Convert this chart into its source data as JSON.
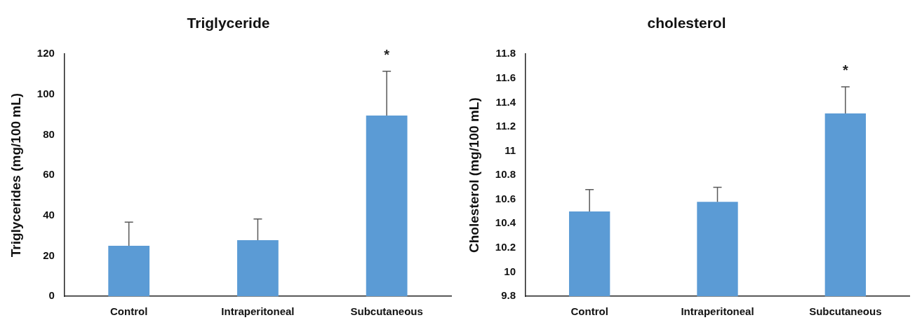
{
  "chart_data": [
    {
      "type": "bar",
      "title": "Triglyceride",
      "ylabel": "Triglycerides (mg/100 mL)",
      "categories": [
        "Control",
        "Intraperitoneal",
        "Subcutaneous"
      ],
      "values": [
        25,
        27.8,
        89.5
      ],
      "errors": [
        [
          25,
          36.7
        ],
        [
          27.8,
          38.3
        ],
        [
          89.5,
          111.5
        ]
      ],
      "color": "#5b9bd5",
      "ylim": [
        0,
        120
      ],
      "yticks": [
        0,
        20,
        40,
        60,
        80,
        100,
        120
      ],
      "annotations": [
        {
          "text": "*",
          "x": "Subcutaneous",
          "y": 111.5
        }
      ]
    },
    {
      "type": "bar",
      "title": "cholesterol",
      "ylabel": "Cholesterol (mg/100 mL)",
      "categories": [
        "Control",
        "Intraperitoneal",
        "Subcutaneous"
      ],
      "values": [
        10.5,
        10.58,
        11.31
      ],
      "errors": [
        [
          10.5,
          10.68
        ],
        [
          10.58,
          10.7
        ],
        [
          11.31,
          11.53
        ]
      ],
      "color": "#5b9bd5",
      "ylim": [
        9.8,
        11.8
      ],
      "yticks": [
        9.8,
        10,
        10.2,
        10.4,
        10.6,
        10.8,
        11,
        11.2,
        11.4,
        11.6,
        11.8
      ],
      "annotations": [
        {
          "text": "*",
          "x": "Subcutaneous",
          "y": 11.53
        }
      ]
    }
  ]
}
